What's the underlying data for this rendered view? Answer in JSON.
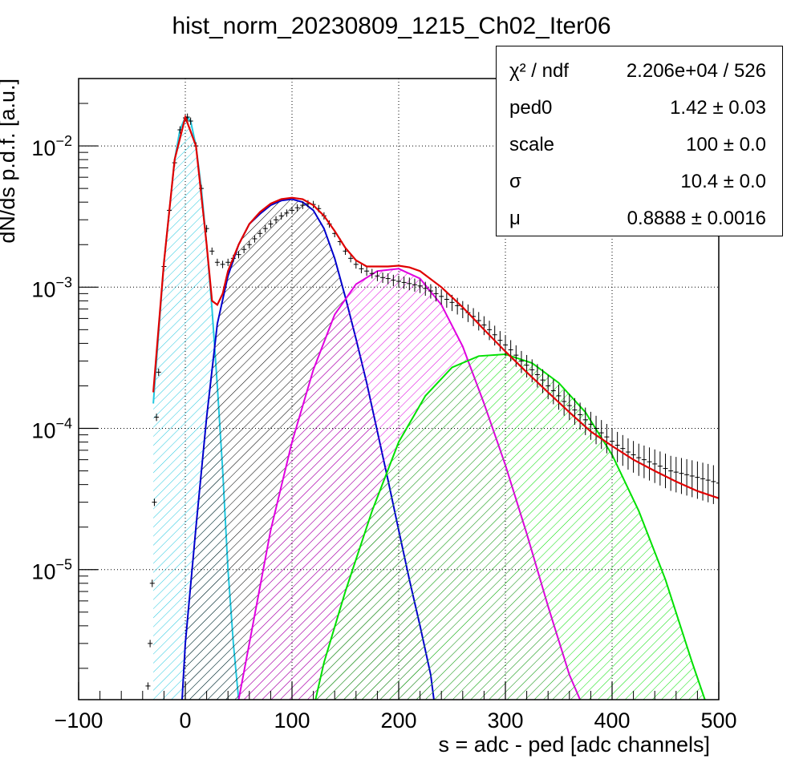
{
  "colors": {
    "data": "#000000",
    "total_fit": "#e00000",
    "pedestal": "#22c8e0",
    "peak1": "#0000cc",
    "peak2": "#e000e0",
    "peak3": "#00e000",
    "grid": "#000000"
  },
  "stats": {
    "rows": [
      {
        "name": "χ² / ndf",
        "value": "2.206e+04 / 526"
      },
      {
        "name": "ped0",
        "value": "1.42 ± 0.03"
      },
      {
        "name": "scale",
        "value": "100 ± 0.0"
      },
      {
        "name": "σ",
        "value": "10.4 ± 0.0"
      },
      {
        "name": "μ",
        "value": "0.8888 ± 0.0016"
      }
    ]
  },
  "chart_data": {
    "type": "line",
    "title": "hist_norm_20230809_1215_Ch02_Iter06",
    "xlabel": "s = adc - ped [adc channels]",
    "ylabel": "dN/ds p.d.f. [a.u.]",
    "xlim": [
      -100,
      500
    ],
    "ylim": [
      1.2e-06,
      0.03
    ],
    "yscale": "log",
    "grid": true,
    "x_ticks": [
      -100,
      0,
      100,
      200,
      300,
      400,
      500
    ],
    "x_tick_labels": [
      "−100",
      "0",
      "100",
      "200",
      "300",
      "400",
      "500"
    ],
    "y_ticks": [
      1e-05,
      0.0001,
      0.001,
      0.01
    ],
    "y_tick_mantissa": "10",
    "y_tick_exponents": [
      "−5",
      "−4",
      "−3",
      "−2"
    ],
    "fit_params": {
      "ped0": 1.42,
      "scale": 100,
      "sigma": 10.4,
      "mu": 0.8888
    },
    "series": [
      {
        "key": "pedestal",
        "style": "component",
        "color": "pedestal",
        "x": [
          -30,
          -20,
          -10,
          -5,
          0,
          2,
          5,
          10,
          15,
          20,
          25,
          30,
          35,
          40,
          45,
          50
        ],
        "y": [
          0.00015,
          0.0015,
          0.008,
          0.013,
          0.016,
          0.016,
          0.015,
          0.01,
          0.005,
          0.002,
          0.0007,
          0.0002,
          5e-05,
          1e-05,
          3e-06,
          1.2e-06
        ]
      },
      {
        "key": "peak1",
        "style": "component",
        "color": "peak1",
        "x": [
          -3,
          0,
          10,
          20,
          30,
          40,
          50,
          60,
          70,
          80,
          90,
          100,
          110,
          120,
          130,
          140,
          150,
          160,
          170,
          180,
          190,
          200,
          210,
          220,
          230,
          233
        ],
        "y": [
          1.2e-06,
          3e-06,
          2e-05,
          0.00012,
          0.00055,
          0.0012,
          0.002,
          0.0028,
          0.0033,
          0.0038,
          0.0041,
          0.0042,
          0.004,
          0.0035,
          0.0026,
          0.0016,
          0.00085,
          0.00043,
          0.00021,
          9.5e-05,
          4.3e-05,
          1.9e-05,
          8.5e-06,
          4e-06,
          1.8e-06,
          1.2e-06
        ]
      },
      {
        "key": "peak2",
        "style": "component",
        "color": "peak2",
        "x": [
          50,
          60,
          80,
          100,
          120,
          140,
          160,
          180,
          200,
          220,
          240,
          260,
          280,
          300,
          320,
          340,
          360,
          370
        ],
        "y": [
          1.2e-06,
          3e-06,
          1.9e-05,
          8e-05,
          0.00026,
          0.00064,
          0.00105,
          0.0013,
          0.00135,
          0.00115,
          0.00075,
          0.00038,
          0.00015,
          5.5e-05,
          1.8e-05,
          5.5e-06,
          1.8e-06,
          1.2e-06
        ]
      },
      {
        "key": "peak3",
        "style": "component",
        "color": "peak3",
        "x": [
          122,
          130,
          150,
          175,
          200,
          225,
          250,
          275,
          300,
          325,
          350,
          375,
          400,
          425,
          450,
          475,
          487
        ],
        "y": [
          1.2e-06,
          2.2e-06,
          7e-06,
          2.6e-05,
          8e-05,
          0.00017,
          0.00027,
          0.000325,
          0.000335,
          0.00029,
          0.00021,
          0.00013,
          6.5e-05,
          2.6e-05,
          8.5e-06,
          2.2e-06,
          1.2e-06
        ]
      },
      {
        "key": "total_fit",
        "style": "line",
        "color": "total_fit",
        "x": [
          -30,
          -20,
          -10,
          0,
          10,
          20,
          25,
          30,
          35,
          40,
          50,
          60,
          70,
          80,
          90,
          100,
          110,
          120,
          130,
          140,
          150,
          160,
          170,
          180,
          190,
          200,
          210,
          220,
          240,
          260,
          280,
          300,
          320,
          340,
          360,
          380,
          400,
          420,
          440,
          460,
          480,
          500
        ],
        "y": [
          0.00018,
          0.0015,
          0.008,
          0.016,
          0.01,
          0.002,
          0.0008,
          0.00075,
          0.0009,
          0.0013,
          0.002,
          0.0028,
          0.0034,
          0.0039,
          0.0042,
          0.0043,
          0.0042,
          0.0038,
          0.0032,
          0.0025,
          0.0019,
          0.00155,
          0.0014,
          0.0014,
          0.0014,
          0.00142,
          0.00138,
          0.0013,
          0.001,
          0.00072,
          0.0005,
          0.00035,
          0.00025,
          0.00018,
          0.00013,
          9.5e-05,
          7.5e-05,
          6e-05,
          5e-05,
          4.2e-05,
          3.6e-05,
          3.2e-05
        ]
      },
      {
        "key": "data",
        "style": "points",
        "color": "data",
        "x": [
          -35,
          -33,
          -31,
          -29,
          -27,
          -25,
          -20,
          -15,
          -10,
          -5,
          0,
          2,
          5,
          10,
          15,
          20,
          25,
          30,
          35,
          40,
          45,
          50,
          55,
          60,
          65,
          70,
          75,
          80,
          85,
          90,
          95,
          100,
          105,
          110,
          115,
          120,
          125,
          130,
          135,
          140,
          145,
          150,
          155,
          160,
          165,
          170,
          175,
          180,
          185,
          190,
          195,
          200,
          205,
          210,
          215,
          220,
          225,
          230,
          235,
          240,
          245,
          250,
          255,
          260,
          265,
          270,
          275,
          280,
          285,
          290,
          295,
          300,
          305,
          310,
          315,
          320,
          325,
          330,
          335,
          340,
          345,
          350,
          355,
          360,
          365,
          370,
          375,
          380,
          385,
          390,
          395,
          400,
          405,
          410,
          415,
          420,
          425,
          430,
          435,
          440,
          445,
          450,
          455,
          460,
          465,
          470,
          475,
          480,
          485,
          490,
          495,
          500
        ],
        "y": [
          1.5e-06,
          3e-06,
          8e-06,
          3e-05,
          0.00012,
          0.00025,
          0.0014,
          0.0035,
          0.0076,
          0.013,
          0.0158,
          0.016,
          0.015,
          0.01,
          0.005,
          0.0026,
          0.0018,
          0.0015,
          0.00145,
          0.0015,
          0.0016,
          0.0017,
          0.00185,
          0.002,
          0.0022,
          0.0024,
          0.0026,
          0.0028,
          0.003,
          0.0032,
          0.00335,
          0.0035,
          0.00365,
          0.0038,
          0.0039,
          0.00385,
          0.0036,
          0.0032,
          0.0028,
          0.0024,
          0.0021,
          0.0018,
          0.0016,
          0.00145,
          0.00135,
          0.0013,
          0.00125,
          0.0012,
          0.00117,
          0.00115,
          0.00112,
          0.0011,
          0.00108,
          0.00106,
          0.00104,
          0.00102,
          0.00098,
          0.00094,
          0.0009,
          0.00086,
          0.00082,
          0.00078,
          0.00074,
          0.0007,
          0.00066,
          0.00062,
          0.00058,
          0.00054,
          0.0005,
          0.00046,
          0.00042,
          0.00039,
          0.00036,
          0.00033,
          0.0003,
          0.00028,
          0.00026,
          0.00024,
          0.00022,
          0.0002,
          0.000185,
          0.00017,
          0.000155,
          0.000145,
          0.000135,
          0.000125,
          0.000115,
          0.000107,
          0.0001,
          9.3e-05,
          8.7e-05,
          8.1e-05,
          7.6e-05,
          7.2e-05,
          6.8e-05,
          6.5e-05,
          6.2e-05,
          6e-05,
          5.8e-05,
          5.6e-05,
          5.4e-05,
          5.2e-05,
          5e-05,
          4.9e-05,
          4.8e-05,
          4.7e-05,
          4.6e-05,
          4.5e-05,
          4.4e-05,
          4.3e-05,
          4.2e-05,
          4.1e-05
        ]
      }
    ]
  }
}
